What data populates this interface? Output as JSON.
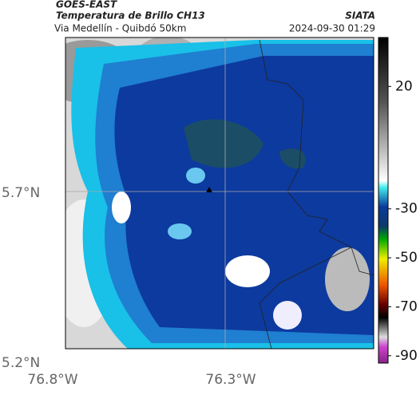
{
  "header": {
    "source": "GOES-EAST",
    "title": "Temperatura de Brillo CH13",
    "subtitle": "Via Medellín - Quibdó 50km",
    "org": "SIATA",
    "timestamp": "2024-09-30 01:29"
  },
  "axes": {
    "lat_labels": [
      "5.7°N",
      "5.2°N"
    ],
    "lon_labels": [
      "76.8°W",
      "76.3°W"
    ]
  },
  "colorbar": {
    "lim": [
      -93,
      40
    ],
    "ticks": [
      20,
      -30,
      -50,
      -70,
      -90
    ]
  }
}
